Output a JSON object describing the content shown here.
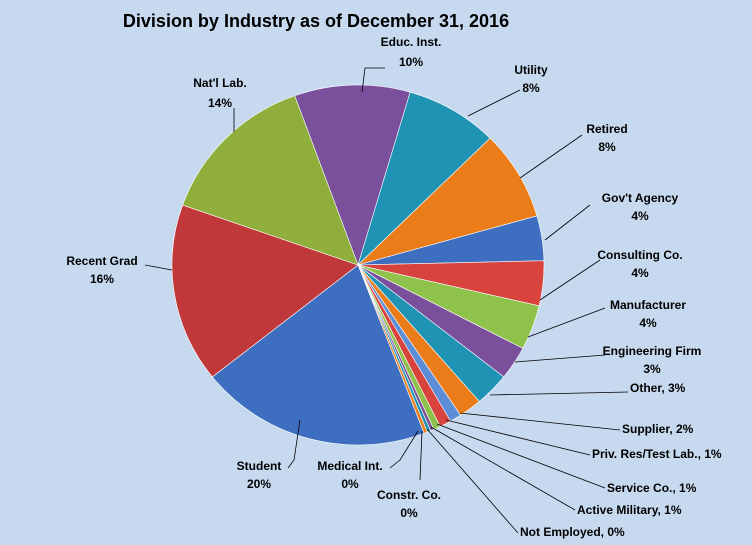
{
  "chart_data": {
    "type": "pie",
    "title": "Division by Industry as of December 31, 2016",
    "slices": [
      {
        "label": "Educ. Inst.",
        "value_text": "10%",
        "value": 10,
        "color": "#7a4f9c"
      },
      {
        "label": "Utility",
        "value_text": "8%",
        "value": 8,
        "color": "#1f93b3"
      },
      {
        "label": "Retired",
        "value_text": "8%",
        "value": 8,
        "color": "#ea7d1a"
      },
      {
        "label": "Gov't Agency",
        "value_text": "4%",
        "value": 4,
        "color": "#3d6ebf"
      },
      {
        "label": "Consulting Co.",
        "value_text": "4%",
        "value": 4,
        "color": "#d9433e"
      },
      {
        "label": "Manufacturer",
        "value_text": "4%",
        "value": 4,
        "color": "#8fc24a"
      },
      {
        "label": "Engineering Firm",
        "value_text": "3%",
        "value": 3,
        "color": "#7a4f9c"
      },
      {
        "label": "Other, 3%",
        "value_text": "",
        "value": 3,
        "color": "#1f93b3"
      },
      {
        "label": "Supplier, 2%",
        "value_text": "",
        "value": 2,
        "color": "#ea7d1a"
      },
      {
        "label": "Priv. Res/Test Lab., 1%",
        "value_text": "",
        "value": 1,
        "color": "#5b8ed6"
      },
      {
        "label": "Service Co., 1%",
        "value_text": "",
        "value": 1,
        "color": "#d9433e"
      },
      {
        "label": "Active Military, 1%",
        "value_text": "",
        "value": 0.6,
        "color": "#8fc24a"
      },
      {
        "label": "Not Employed, 0%",
        "value_text": "",
        "value": 0.3,
        "color": "#7a4f9c"
      },
      {
        "label": "Constr. Co.",
        "value_text": "0%",
        "value": 0.3,
        "color": "#1f93b3"
      },
      {
        "label": "Medical Int.",
        "value_text": "0%",
        "value": 0.3,
        "color": "#ea7d1a"
      },
      {
        "label": "Student",
        "value_text": "20%",
        "value": 20,
        "color": "#3d6ebf"
      },
      {
        "label": "Recent Grad",
        "value_text": "16%",
        "value": 16,
        "color": "#c0383a"
      },
      {
        "label": "Nat'l Lab.",
        "value_text": "14%",
        "value": 14,
        "color": "#8fae3c"
      }
    ]
  }
}
